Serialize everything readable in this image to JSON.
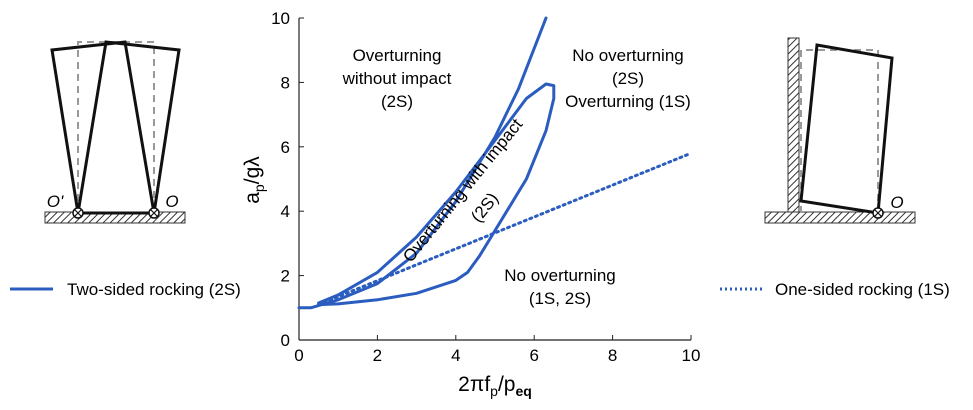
{
  "chart_data": {
    "type": "line",
    "xlabel_main": "2πf",
    "xlabel_sub1": "p",
    "xlabel_mid": "/p",
    "xlabel_sub2": "eq",
    "ylabel_main": "a",
    "ylabel_sub": "p",
    "ylabel_rest": "/gλ",
    "xlim": [
      0,
      10
    ],
    "ylim": [
      0,
      10
    ],
    "xticks": [
      "0",
      "2",
      "4",
      "6",
      "8",
      "10"
    ],
    "yticks": [
      "0",
      "2",
      "4",
      "6",
      "8",
      "10"
    ],
    "grid": false,
    "color": "#2a5dbf",
    "series": [
      {
        "name": "Two-sided rocking (2S)",
        "style": "solid",
        "segments": [
          [
            [
              0,
              1.0
            ],
            [
              0.3,
              1.0
            ],
            [
              1.0,
              1.25
            ],
            [
              2.0,
              1.75
            ],
            [
              3.0,
              2.7
            ],
            [
              4.0,
              4.3
            ],
            [
              5.0,
              6.3
            ],
            [
              5.6,
              7.8
            ],
            [
              6.3,
              10.0
            ]
          ],
          [
            [
              0.5,
              1.15
            ],
            [
              1.0,
              1.4
            ],
            [
              2.0,
              2.1
            ],
            [
              3.0,
              3.2
            ],
            [
              4.0,
              4.6
            ],
            [
              5.0,
              6.2
            ],
            [
              5.8,
              7.5
            ],
            [
              6.3,
              7.95
            ],
            [
              6.5,
              7.9
            ],
            [
              6.5,
              7.5
            ],
            [
              6.3,
              6.5
            ],
            [
              5.8,
              5.0
            ],
            [
              5.3,
              4.0
            ],
            [
              4.9,
              3.2
            ],
            [
              4.6,
              2.6
            ],
            [
              4.3,
              2.1
            ],
            [
              4.0,
              1.85
            ],
            [
              3.0,
              1.45
            ],
            [
              2.0,
              1.25
            ],
            [
              1.0,
              1.12
            ],
            [
              0.5,
              1.1
            ]
          ]
        ]
      },
      {
        "name": "One-sided rocking (1S)",
        "style": "dotted",
        "segments": [
          [
            [
              0.5,
              1.1
            ],
            [
              10.0,
              5.8
            ]
          ]
        ]
      }
    ],
    "regions": {
      "overturning_no_impact": [
        "Overturning",
        "without impact",
        "(2S)"
      ],
      "no_overturning_top": [
        "No overturning",
        "(2S)",
        "Overturning (1S)"
      ],
      "with_impact": [
        "Overturning with impact",
        "(2S)"
      ],
      "no_overturning_bottom": [
        "No overturning",
        "(1S, 2S)"
      ]
    },
    "legend": {
      "two_sided": "Two-sided rocking (2S)",
      "one_sided": "One-sided rocking (1S)"
    },
    "pivots": {
      "left_o_prime": "O'",
      "left_o": "O",
      "right_o": "O"
    }
  }
}
